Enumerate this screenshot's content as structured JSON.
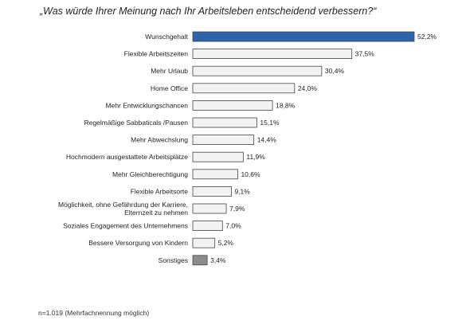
{
  "chart_data": {
    "type": "bar",
    "orientation": "horizontal",
    "title": "„Was würde Ihrer Meinung nach Ihr Arbeitsleben entscheidend verbessern?“",
    "categories": [
      "Wunschgehalt",
      "Flexible Arbeitszeiten",
      "Mehr Urlaub",
      "Home Office",
      "Mehr Entwicklungschancen",
      "Regelmäßige Sabbaticals /Pausen",
      "Mehr Abwechslung",
      "Hochmodern ausgestattete Arbeitsplätze",
      "Mehr Gleichberechtigung",
      "Flexible Arbeitsorte",
      "Möglichkeit, ohne Gefährdung der Karriere, Elternzeit zu nehmen",
      "Soziales Engagement des Unternehmens",
      "Bessere Versorgung von Kindern",
      "Sonstiges"
    ],
    "values": [
      52.2,
      37.5,
      30.4,
      24.0,
      18.8,
      15.1,
      14.4,
      11.9,
      10.6,
      9.1,
      7.9,
      7.0,
      5.2,
      3.4
    ],
    "value_labels": [
      "52,2%",
      "37,5%",
      "30,4%",
      "24,0%",
      "18,8%",
      "15,1%",
      "14,4%",
      "11,9%",
      "10,6%",
      "9,1%",
      "7,9%",
      "7,0%",
      "5,2%",
      "3,4%"
    ],
    "bar_colors": {
      "highlight": "#2e64ad",
      "default": "#f2f2f2",
      "other": "#8c8c8c",
      "border": "#444444"
    },
    "xlim": [
      0,
      52.2
    ],
    "grid": false,
    "legend": "none"
  },
  "footnote": "n=1.019 (Mehrfachnennung möglich)"
}
